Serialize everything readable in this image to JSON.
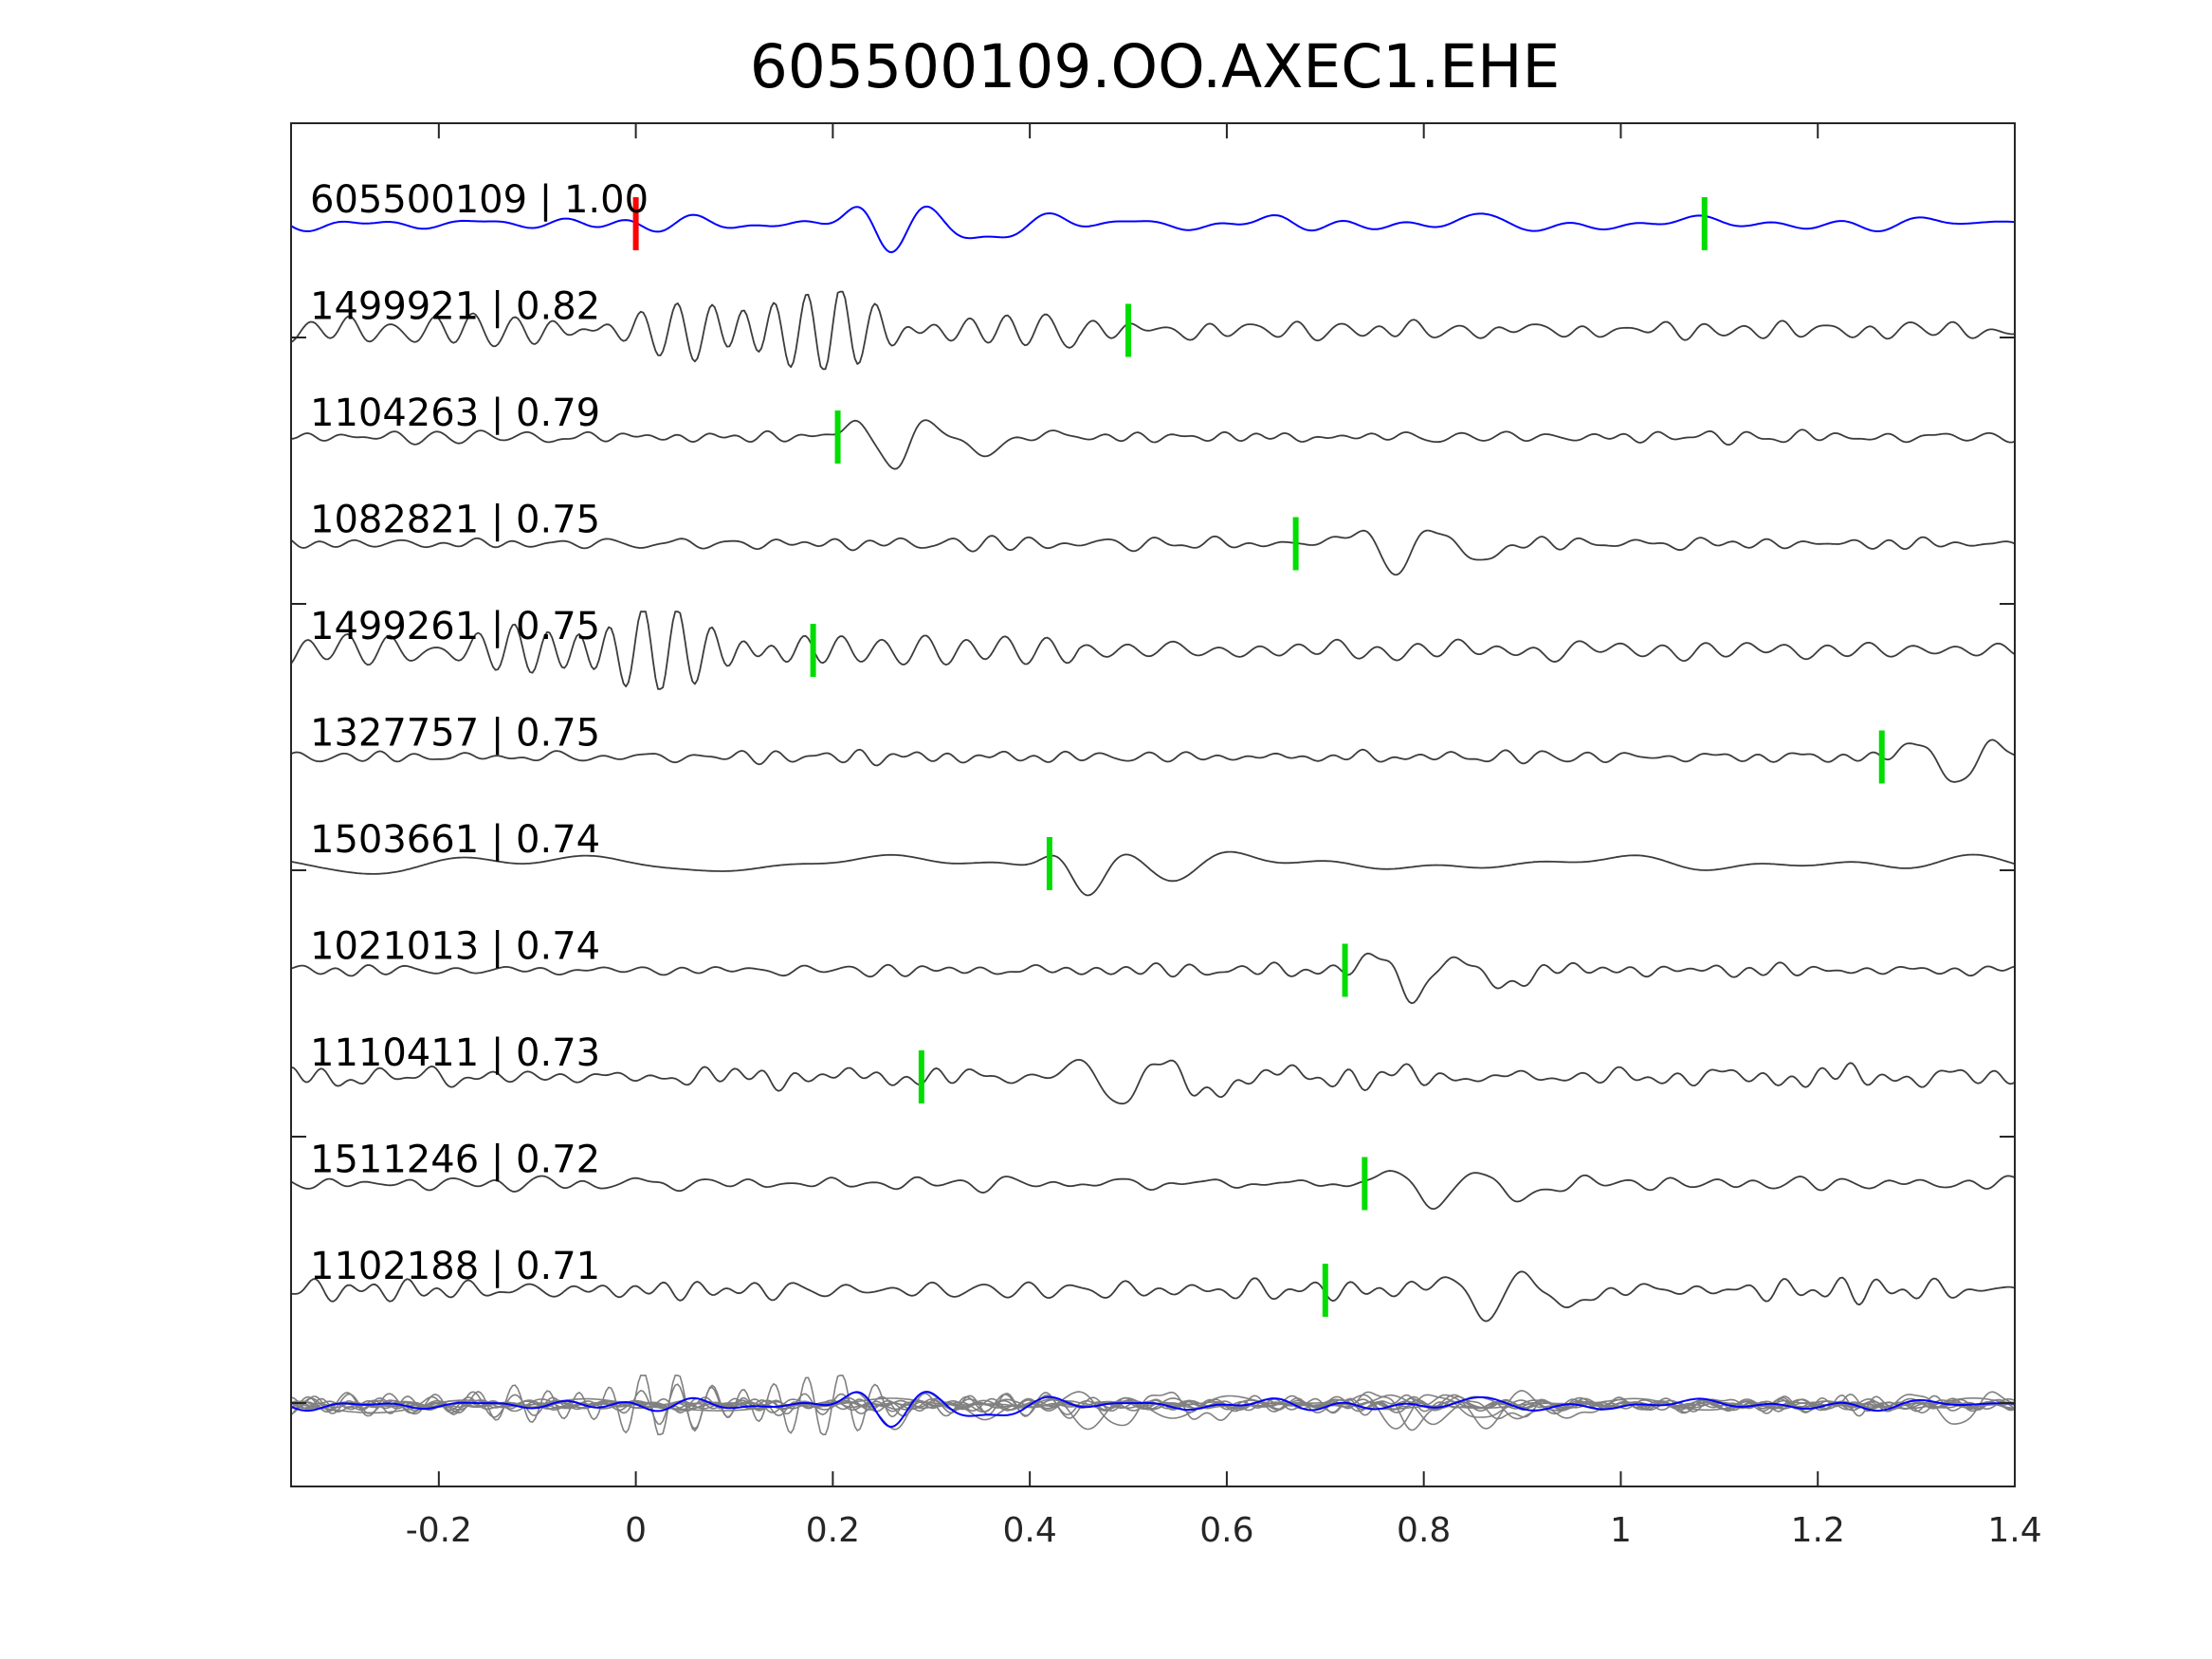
{
  "chart_data": {
    "type": "line",
    "title": "605500109.OO.AXEC1.EHE",
    "xlabel": "",
    "ylabel": "",
    "xlim": [
      -0.35,
      1.4
    ],
    "xticks": [
      -0.2,
      0,
      0.2,
      0.4,
      0.6,
      0.8,
      1,
      1.2,
      1.4
    ],
    "xtick_labels": [
      "-0.2",
      "0",
      "0.2",
      "0.4",
      "0.6",
      "0.8",
      "1",
      "1.2",
      "1.4"
    ],
    "grid": false,
    "legend": "none",
    "colors": {
      "reference_trace": "#0000ff",
      "trace": "#3c3c3c",
      "overlay_trace": "#808080",
      "reference_pick": "#ff0000",
      "pick": "#00dd00",
      "axes": "#262626"
    },
    "traces": [
      {
        "label": "605500109 | 1.00",
        "id": "605500109",
        "cc": 1.0,
        "pick_time": 0.0,
        "second_pick_time": 1.085,
        "reference": true,
        "event_time": 0.25,
        "style": "smooth"
      },
      {
        "label": "1499921 | 0.82",
        "id": "1499921",
        "cc": 0.82,
        "pick_time": 0.5,
        "event_time": 0.15,
        "style": "ringing"
      },
      {
        "label": "1104263 | 0.79",
        "id": "1104263",
        "cc": 0.79,
        "pick_time": 0.205,
        "event_time": 0.25,
        "style": "pulse"
      },
      {
        "label": "1082821 | 0.75",
        "id": "1082821",
        "cc": 0.75,
        "pick_time": 0.67,
        "event_time": 0.76,
        "style": "pulse"
      },
      {
        "label": "1499261 | 0.75",
        "id": "1499261",
        "cc": 0.75,
        "pick_time": 0.18,
        "event_time": 0.0,
        "style": "ringing"
      },
      {
        "label": "1327757 | 0.75",
        "id": "1327757",
        "cc": 0.75,
        "pick_time": 1.265,
        "event_time": 1.33,
        "style": "pulse"
      },
      {
        "label": "1503661 | 0.74",
        "id": "1503661",
        "cc": 0.74,
        "pick_time": 0.42,
        "event_time": 0.45,
        "style": "lowfreq"
      },
      {
        "label": "1021013 | 0.74",
        "id": "1021013",
        "cc": 0.74,
        "pick_time": 0.72,
        "event_time": 0.78,
        "style": "pulse"
      },
      {
        "label": "1110411 | 0.73",
        "id": "1110411",
        "cc": 0.73,
        "pick_time": 0.29,
        "event_time": 0.48,
        "style": "noisy"
      },
      {
        "label": "1511246 | 0.72",
        "id": "1511246",
        "cc": 0.72,
        "pick_time": 0.74,
        "event_time": 0.8,
        "style": "pulse"
      },
      {
        "label": "1102188 | 0.71",
        "id": "1102188",
        "cc": 0.71,
        "pick_time": 0.7,
        "event_time": 0.85,
        "style": "noisy"
      }
    ]
  }
}
